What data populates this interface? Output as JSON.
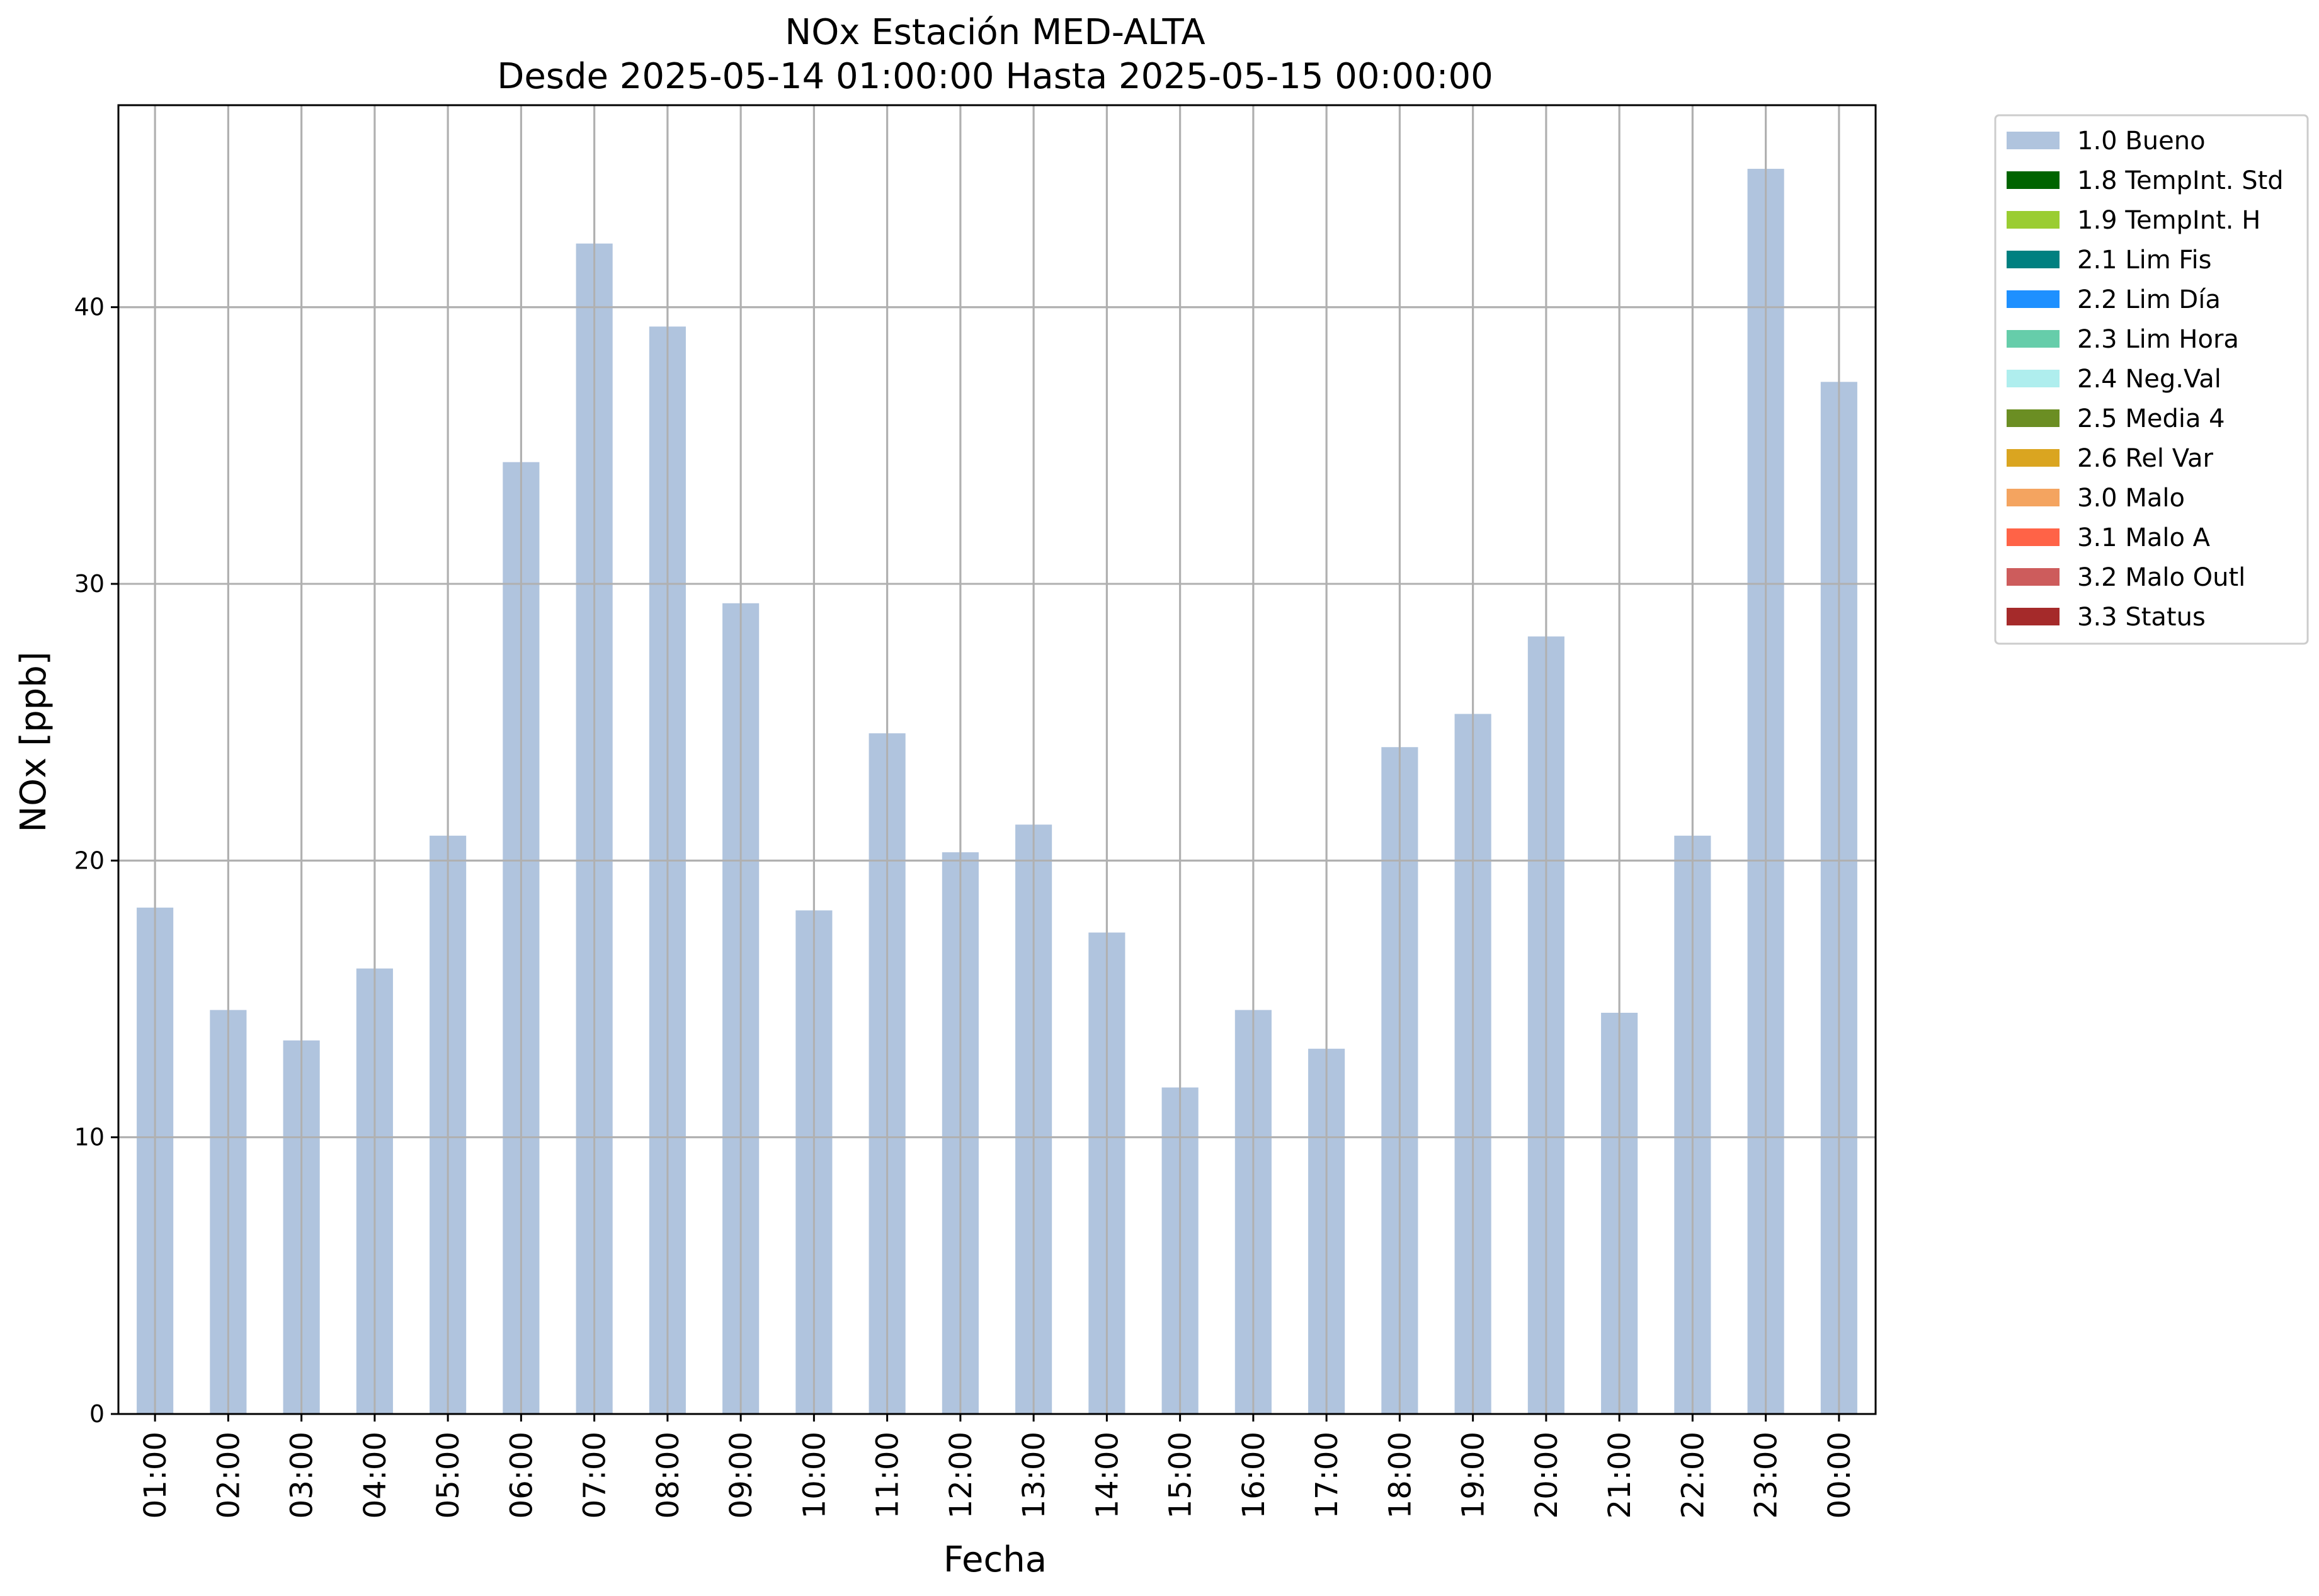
{
  "chart_data": {
    "type": "bar",
    "title_line1": "NOx Estación MED-ALTA",
    "title_line2": "Desde 2025-05-14 01:00:00 Hasta 2025-05-15 00:00:00",
    "xlabel": "Fecha",
    "ylabel": "NOx [ppb]",
    "ylim": [
      0,
      47.3
    ],
    "yticks": [
      0,
      10,
      20,
      30,
      40
    ],
    "grid": true,
    "legend_position": "outside top-right",
    "categories": [
      "01:00",
      "02:00",
      "03:00",
      "04:00",
      "05:00",
      "06:00",
      "07:00",
      "08:00",
      "09:00",
      "10:00",
      "11:00",
      "12:00",
      "13:00",
      "14:00",
      "15:00",
      "16:00",
      "17:00",
      "18:00",
      "19:00",
      "20:00",
      "21:00",
      "22:00",
      "23:00",
      "00:00"
    ],
    "series": [
      {
        "name": "1.0 Bueno",
        "color": "#b0c4de",
        "values": [
          18.3,
          14.6,
          13.5,
          16.1,
          20.9,
          34.4,
          42.3,
          39.3,
          29.3,
          18.2,
          24.6,
          20.3,
          21.3,
          17.4,
          11.8,
          14.6,
          13.2,
          24.1,
          25.3,
          28.1,
          14.5,
          20.9,
          45.0,
          37.3
        ]
      }
    ],
    "legend": [
      {
        "label": "1.0 Bueno",
        "color": "#b0c4de"
      },
      {
        "label": "1.8 TempInt. Std",
        "color": "#006400"
      },
      {
        "label": "1.9 TempInt. H",
        "color": "#9acd32"
      },
      {
        "label": "2.1 Lim Fis",
        "color": "#008080"
      },
      {
        "label": "2.2 Lim Día",
        "color": "#1e90ff"
      },
      {
        "label": "2.3 Lim Hora",
        "color": "#66cdaa"
      },
      {
        "label": "2.4 Neg.Val",
        "color": "#afeeee"
      },
      {
        "label": "2.5 Media 4",
        "color": "#6b8e23"
      },
      {
        "label": "2.6 Rel Var",
        "color": "#daa520"
      },
      {
        "label": "3.0 Malo",
        "color": "#f4a460"
      },
      {
        "label": "3.1 Malo A",
        "color": "#ff6347"
      },
      {
        "label": "3.2 Malo Outl",
        "color": "#cd5c5c"
      },
      {
        "label": "3.3 Status",
        "color": "#a52a2a"
      }
    ]
  }
}
